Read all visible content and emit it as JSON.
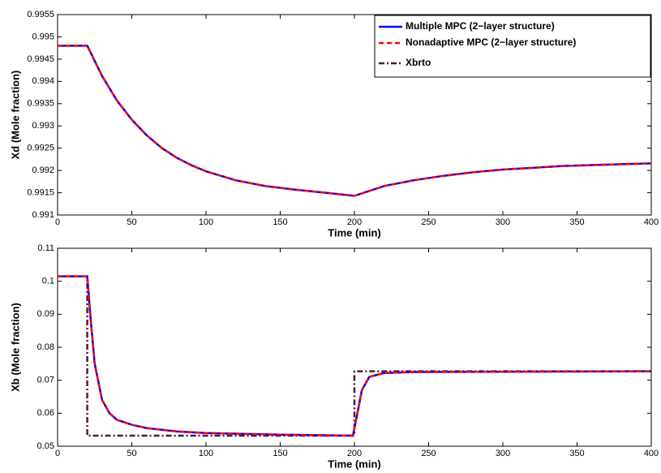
{
  "chart_data": [
    {
      "type": "line",
      "ylabel": "Xd  (Mole fraction)",
      "xlabel": "Time (min)",
      "xlim": [
        0,
        400
      ],
      "xticks": [
        0,
        50,
        100,
        150,
        200,
        250,
        300,
        350,
        400
      ],
      "ylim": [
        0.991,
        0.9955
      ],
      "yticks": [
        0.991,
        0.9915,
        0.992,
        0.9925,
        0.993,
        0.9935,
        0.994,
        0.9945,
        0.995,
        0.9955
      ],
      "legend": [
        {
          "name": "Multiple MPC (2−layer structure)",
          "color": "#0000ff",
          "line_style": "solid"
        },
        {
          "name": "Nonadaptive MPC (2−layer structure)",
          "color": "#ff0000",
          "line_style": "dashed"
        },
        {
          "name": "Xbrto",
          "color": "#4d1a3d",
          "line_style": "dashdot"
        }
      ],
      "series": [
        {
          "color": "#0000ff",
          "line_style": "solid",
          "x": [
            0,
            20,
            30,
            40,
            50,
            60,
            70,
            80,
            90,
            100,
            120,
            140,
            160,
            180,
            200,
            220,
            240,
            260,
            280,
            300,
            320,
            340,
            360,
            380,
            400
          ],
          "values": [
            0.9948,
            0.9948,
            0.99412,
            0.99357,
            0.99314,
            0.99279,
            0.99251,
            0.99229,
            0.99212,
            0.99198,
            0.99178,
            0.99165,
            0.99157,
            0.9915,
            0.99143,
            0.99165,
            0.99178,
            0.99188,
            0.99196,
            0.99202,
            0.99206,
            0.9921,
            0.99212,
            0.99214,
            0.99216
          ]
        },
        {
          "color": "#ff0000",
          "line_style": "dashed",
          "x": [
            0,
            20,
            30,
            40,
            50,
            60,
            70,
            80,
            90,
            100,
            120,
            140,
            160,
            180,
            200,
            220,
            240,
            260,
            280,
            300,
            320,
            340,
            360,
            380,
            400
          ],
          "values": [
            0.9948,
            0.9948,
            0.99412,
            0.99357,
            0.99314,
            0.99279,
            0.99251,
            0.99229,
            0.99212,
            0.99198,
            0.99178,
            0.99165,
            0.99157,
            0.9915,
            0.99143,
            0.99165,
            0.99178,
            0.99188,
            0.99196,
            0.99202,
            0.99206,
            0.9921,
            0.99212,
            0.99214,
            0.99216
          ]
        }
      ]
    },
    {
      "type": "line",
      "ylabel": "Xb  (Mole fraction)",
      "xlabel": "Time (min)",
      "xlim": [
        0,
        400
      ],
      "xticks": [
        0,
        50,
        100,
        150,
        200,
        250,
        300,
        350,
        400
      ],
      "ylim": [
        0.05,
        0.11
      ],
      "yticks": [
        0.05,
        0.06,
        0.07,
        0.08,
        0.09,
        0.1,
        0.11
      ],
      "series": [
        {
          "color": "#4d1a3d",
          "line_style": "dashdot",
          "x": [
            0,
            20,
            20,
            200,
            200,
            400
          ],
          "values": [
            0.1015,
            0.1015,
            0.0532,
            0.0532,
            0.0727,
            0.0727
          ]
        },
        {
          "color": "#0000ff",
          "line_style": "solid",
          "x": [
            0,
            20,
            22,
            25,
            30,
            35,
            40,
            50,
            60,
            80,
            100,
            150,
            199,
            202,
            205,
            210,
            220,
            240,
            400
          ],
          "values": [
            0.1015,
            0.1015,
            0.09,
            0.075,
            0.064,
            0.06,
            0.058,
            0.0565,
            0.0555,
            0.0545,
            0.054,
            0.0535,
            0.0532,
            0.06,
            0.067,
            0.071,
            0.0722,
            0.0725,
            0.0727
          ]
        },
        {
          "color": "#ff0000",
          "line_style": "dashed",
          "x": [
            0,
            20,
            22,
            25,
            30,
            35,
            40,
            50,
            60,
            80,
            100,
            150,
            199,
            202,
            205,
            210,
            220,
            240,
            400
          ],
          "values": [
            0.1015,
            0.1015,
            0.09,
            0.075,
            0.064,
            0.06,
            0.058,
            0.0565,
            0.0555,
            0.0545,
            0.054,
            0.0535,
            0.0532,
            0.06,
            0.067,
            0.071,
            0.0722,
            0.0725,
            0.0727
          ]
        }
      ]
    }
  ]
}
